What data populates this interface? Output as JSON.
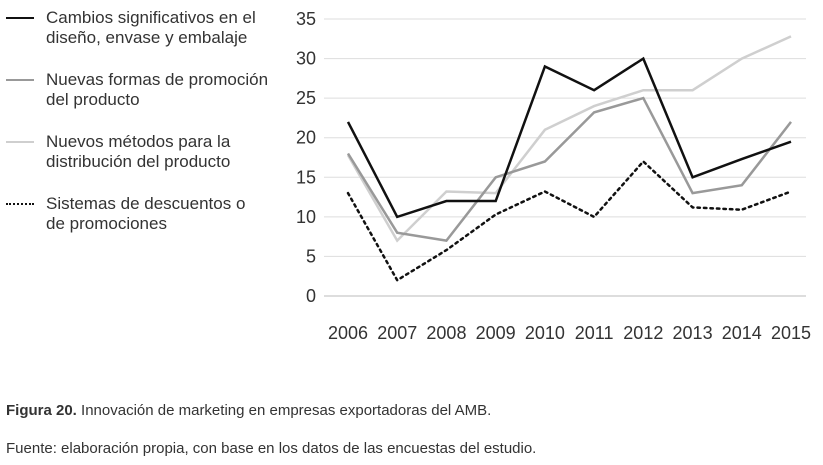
{
  "chart_data": {
    "type": "line",
    "x": [
      "2006",
      "2007",
      "2008",
      "2009",
      "2010",
      "2011",
      "2012",
      "2013",
      "2014",
      "2015"
    ],
    "yticks": [
      0,
      5,
      10,
      15,
      20,
      25,
      30,
      35
    ],
    "ylim": [
      0,
      35
    ],
    "grid": true,
    "legend_position": "left",
    "series": [
      {
        "name": "Cambios significativos en el diseño, envase y embalaje",
        "values": [
          22,
          10,
          12,
          12,
          29,
          26,
          30,
          15,
          17.3,
          19.5
        ],
        "color": "#111111",
        "style": "solid"
      },
      {
        "name": "Nuevas formas de promoción del producto",
        "values": [
          18,
          8,
          7,
          15,
          17,
          23.2,
          25,
          13,
          14,
          22
        ],
        "color": "#999999",
        "style": "solid"
      },
      {
        "name": "Nuevos métodos para la distribución del producto",
        "values": [
          17.8,
          7,
          13.2,
          13,
          21,
          24,
          26,
          26,
          30,
          32.8
        ],
        "color": "#cfcfcf",
        "style": "solid"
      },
      {
        "name": "Sistemas de descuentos o de promociones",
        "values": [
          13,
          2,
          5.8,
          10.3,
          13.2,
          10,
          17,
          11.2,
          10.9,
          13.2
        ],
        "color": "#111111",
        "style": "dotted"
      }
    ]
  },
  "legend": [
    {
      "line1": "Cambios significativos en el",
      "line2": "diseño, envase y embalaje"
    },
    {
      "line1": "Nuevas formas de promoción",
      "line2": "del producto"
    },
    {
      "line1": "Nuevos métodos para la",
      "line2": "distribución del producto"
    },
    {
      "line1": "Sistemas de descuentos o",
      "line2": "de promociones"
    }
  ],
  "caption": {
    "figure_label": "Figura 20.",
    "text": "Innovación de marketing en empresas exportadoras del AMB.",
    "source": "Fuente: elaboración propia, con base en los datos de las encuestas del estudio."
  }
}
